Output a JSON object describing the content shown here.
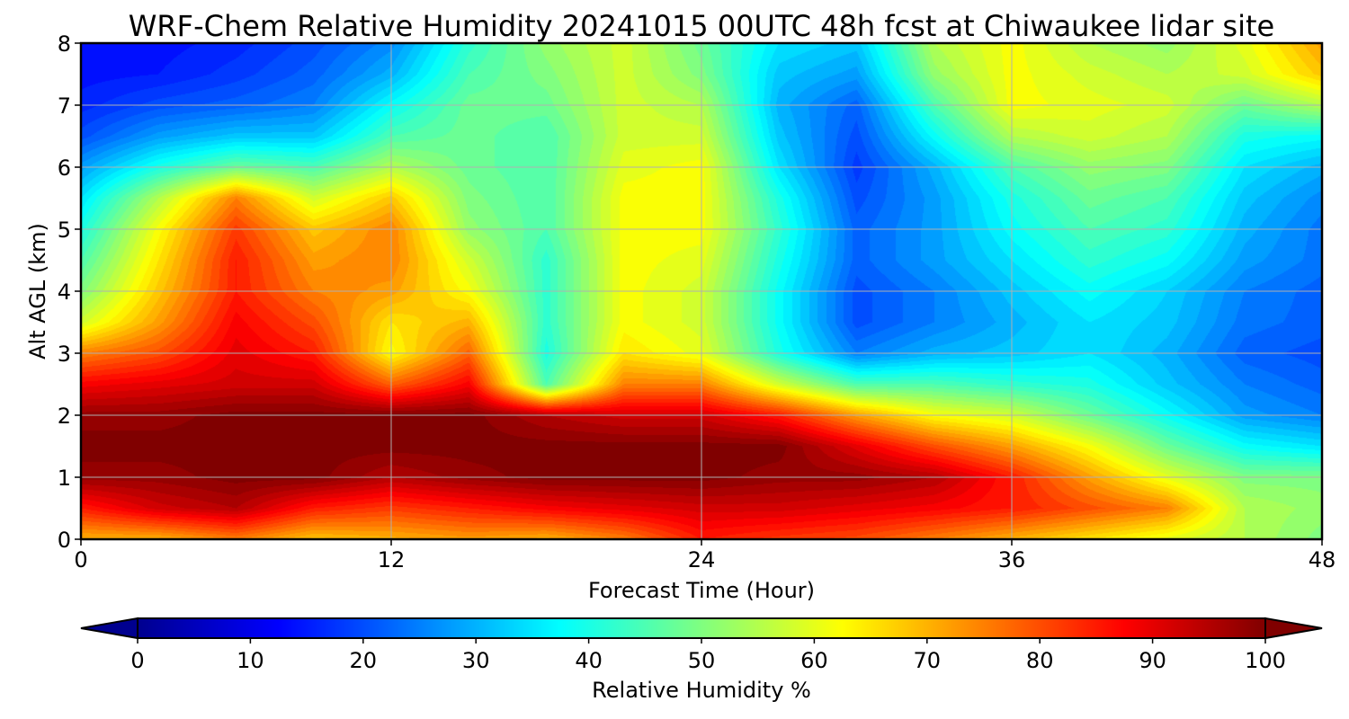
{
  "chart_data": {
    "type": "heatmap",
    "title": "WRF-Chem Relative Humidity 20241015 00UTC 48h fcst at Chiwaukee lidar site",
    "xlabel": "Forecast Time (Hour)",
    "ylabel": "Alt AGL (km)",
    "xlim": [
      0,
      48
    ],
    "ylim": [
      0,
      8
    ],
    "x_ticks": [
      "0",
      "12",
      "24",
      "36",
      "48"
    ],
    "y_ticks": [
      "0",
      "1",
      "2",
      "3",
      "4",
      "5",
      "6",
      "7",
      "8"
    ],
    "grid": true,
    "colormap": "jet",
    "colorbar": {
      "label": "Relative Humidity %",
      "range": [
        0,
        100
      ],
      "ticks": [
        "0",
        "10",
        "20",
        "30",
        "40",
        "50",
        "60",
        "70",
        "80",
        "90",
        "100"
      ],
      "extend": "both",
      "orientation": "horizontal",
      "placement": "bottom"
    },
    "x_hours": [
      0,
      3,
      6,
      9,
      12,
      15,
      18,
      21,
      24,
      27,
      30,
      33,
      36,
      39,
      42,
      45,
      48
    ],
    "y_km": [
      0,
      0.5,
      1,
      1.5,
      2,
      2.5,
      3,
      3.5,
      4,
      4.5,
      5,
      5.5,
      6,
      6.5,
      7,
      7.5,
      8
    ],
    "values": [
      [
        70,
        70,
        75,
        68,
        70,
        72,
        70,
        75,
        85,
        82,
        80,
        75,
        70,
        65,
        60,
        55,
        50
      ],
      [
        85,
        92,
        95,
        85,
        82,
        85,
        88,
        90,
        92,
        92,
        90,
        88,
        85,
        80,
        75,
        55,
        52
      ],
      [
        98,
        98,
        100,
        100,
        95,
        98,
        100,
        100,
        100,
        98,
        98,
        95,
        85,
        72,
        60,
        50,
        50
      ],
      [
        100,
        100,
        100,
        100,
        100,
        100,
        100,
        100,
        100,
        100,
        90,
        80,
        72,
        62,
        48,
        38,
        35
      ],
      [
        98,
        98,
        100,
        100,
        100,
        100,
        95,
        92,
        92,
        85,
        72,
        62,
        58,
        48,
        38,
        28,
        25
      ],
      [
        88,
        90,
        92,
        92,
        78,
        88,
        45,
        75,
        75,
        58,
        45,
        45,
        42,
        40,
        32,
        25,
        22
      ],
      [
        75,
        80,
        90,
        85,
        62,
        78,
        40,
        65,
        60,
        40,
        25,
        30,
        32,
        35,
        30,
        22,
        20
      ],
      [
        58,
        72,
        88,
        80,
        65,
        70,
        42,
        62,
        58,
        38,
        20,
        25,
        30,
        35,
        32,
        24,
        22
      ],
      [
        50,
        68,
        85,
        75,
        72,
        62,
        42,
        62,
        58,
        38,
        20,
        25,
        32,
        38,
        33,
        25,
        22
      ],
      [
        45,
        65,
        85,
        72,
        75,
        58,
        42,
        62,
        60,
        40,
        22,
        28,
        35,
        42,
        38,
        28,
        24
      ],
      [
        40,
        62,
        82,
        68,
        75,
        52,
        45,
        62,
        62,
        42,
        22,
        28,
        38,
        45,
        42,
        30,
        24
      ],
      [
        35,
        55,
        75,
        58,
        68,
        50,
        45,
        62,
        62,
        40,
        20,
        28,
        40,
        48,
        45,
        32,
        26
      ],
      [
        28,
        40,
        48,
        45,
        55,
        48,
        45,
        60,
        62,
        35,
        18,
        30,
        45,
        52,
        50,
        35,
        30
      ],
      [
        20,
        28,
        32,
        32,
        45,
        48,
        45,
        58,
        58,
        32,
        20,
        38,
        55,
        58,
        55,
        40,
        38
      ],
      [
        16,
        20,
        22,
        25,
        38,
        48,
        48,
        58,
        55,
        30,
        22,
        45,
        62,
        60,
        58,
        48,
        55
      ],
      [
        14,
        15,
        18,
        22,
        30,
        45,
        50,
        58,
        50,
        32,
        28,
        52,
        62,
        58,
        55,
        58,
        68
      ],
      [
        13,
        14,
        16,
        20,
        26,
        42,
        52,
        58,
        48,
        35,
        32,
        55,
        62,
        55,
        52,
        60,
        72
      ]
    ]
  }
}
